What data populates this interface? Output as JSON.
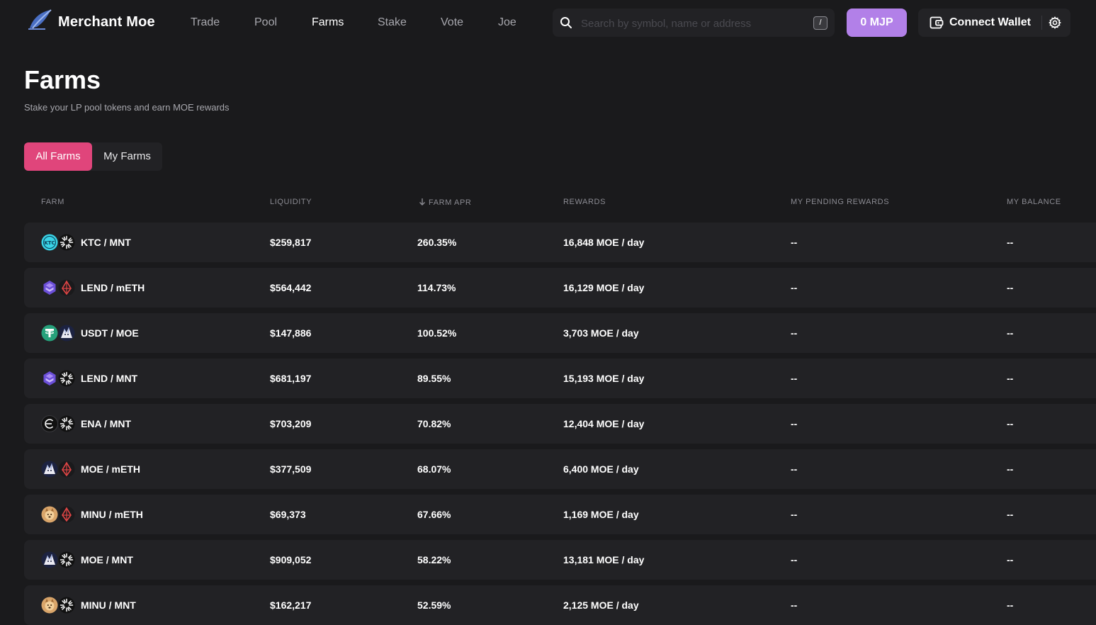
{
  "header": {
    "brand": "Merchant Moe",
    "nav": [
      "Trade",
      "Pool",
      "Farms",
      "Stake",
      "Vote",
      "Joe"
    ],
    "active_nav": "Farms",
    "search_placeholder": "Search by symbol, name or address",
    "search_shortcut": "/",
    "mjp_label": "0 MJP",
    "connect_wallet_label": "Connect Wallet"
  },
  "page": {
    "title": "Farms",
    "subtitle": "Stake your LP pool tokens and earn MOE rewards"
  },
  "tabs": [
    "All Farms",
    "My Farms"
  ],
  "table": {
    "headers": {
      "farm": "FARM",
      "liquidity": "LIQUIDITY",
      "farm_apr": "FARM APR",
      "rewards": "REWARDS",
      "pending": "MY PENDING REWARDS",
      "balance": "MY BALANCE"
    },
    "rows": [
      {
        "pair": "KTC / MNT",
        "tokens": [
          "ktc-token-icon",
          "mnt-token-icon"
        ],
        "liquidity": "$259,817",
        "apr": "260.35%",
        "rewards": "16,848 MOE / day",
        "pending": "--",
        "balance": "--"
      },
      {
        "pair": "LEND / mETH",
        "tokens": [
          "lend-token-icon",
          "meth-token-icon"
        ],
        "liquidity": "$564,442",
        "apr": "114.73%",
        "rewards": "16,129 MOE / day",
        "pending": "--",
        "balance": "--"
      },
      {
        "pair": "USDT / MOE",
        "tokens": [
          "usdt-token-icon",
          "moe-token-icon"
        ],
        "liquidity": "$147,886",
        "apr": "100.52%",
        "rewards": "3,703 MOE / day",
        "pending": "--",
        "balance": "--"
      },
      {
        "pair": "LEND / MNT",
        "tokens": [
          "lend-token-icon",
          "mnt-token-icon"
        ],
        "liquidity": "$681,197",
        "apr": "89.55%",
        "rewards": "15,193 MOE / day",
        "pending": "--",
        "balance": "--"
      },
      {
        "pair": "ENA / MNT",
        "tokens": [
          "ena-token-icon",
          "mnt-token-icon"
        ],
        "liquidity": "$703,209",
        "apr": "70.82%",
        "rewards": "12,404 MOE / day",
        "pending": "--",
        "balance": "--"
      },
      {
        "pair": "MOE / mETH",
        "tokens": [
          "moe-token-icon",
          "meth-token-icon"
        ],
        "liquidity": "$377,509",
        "apr": "68.07%",
        "rewards": "6,400 MOE / day",
        "pending": "--",
        "balance": "--"
      },
      {
        "pair": "MINU / mETH",
        "tokens": [
          "minu-token-icon",
          "meth-token-icon"
        ],
        "liquidity": "$69,373",
        "apr": "67.66%",
        "rewards": "1,169 MOE / day",
        "pending": "--",
        "balance": "--"
      },
      {
        "pair": "MOE / MNT",
        "tokens": [
          "moe-token-icon",
          "mnt-token-icon"
        ],
        "liquidity": "$909,052",
        "apr": "58.22%",
        "rewards": "13,181 MOE / day",
        "pending": "--",
        "balance": "--"
      },
      {
        "pair": "MINU / MNT",
        "tokens": [
          "minu-token-icon",
          "mnt-token-icon"
        ],
        "liquidity": "$162,217",
        "apr": "52.59%",
        "rewards": "2,125 MOE / day",
        "pending": "--",
        "balance": "--"
      }
    ]
  },
  "colors": {
    "background": "#1a1a1c",
    "row_background": "#222225",
    "accent_pink": "#e0457b",
    "accent_purple": "#b280e8",
    "muted_text": "#a7a7ad"
  }
}
